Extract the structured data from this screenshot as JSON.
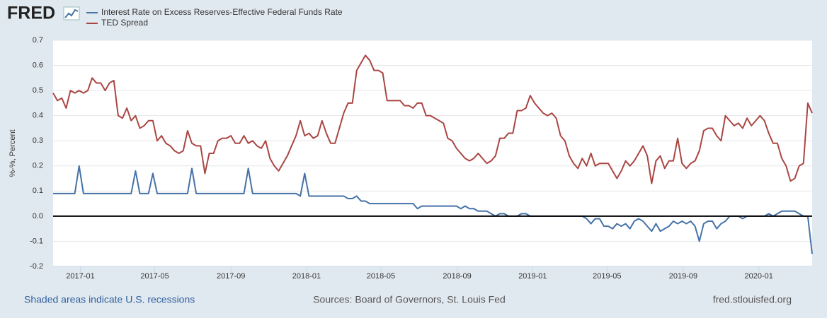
{
  "logo": "FRED",
  "footer": {
    "left": "Shaded areas indicate U.S. recessions",
    "center": "Sources: Board of Governors, St. Louis Fed",
    "right": "fred.stlouisfed.org"
  },
  "chart_data": {
    "type": "line",
    "y_label": "%-%, Percent",
    "x": [
      "2016-11-18",
      "2016-11-25",
      "2016-12-02",
      "2016-12-09",
      "2016-12-16",
      "2016-12-23",
      "2016-12-30",
      "2017-01-06",
      "2017-01-13",
      "2017-01-20",
      "2017-01-27",
      "2017-02-03",
      "2017-02-10",
      "2017-02-17",
      "2017-02-24",
      "2017-03-03",
      "2017-03-10",
      "2017-03-17",
      "2017-03-24",
      "2017-03-31",
      "2017-04-07",
      "2017-04-14",
      "2017-04-21",
      "2017-04-28",
      "2017-05-05",
      "2017-05-12",
      "2017-05-19",
      "2017-05-26",
      "2017-06-02",
      "2017-06-09",
      "2017-06-16",
      "2017-06-23",
      "2017-06-30",
      "2017-07-07",
      "2017-07-14",
      "2017-07-21",
      "2017-07-28",
      "2017-08-04",
      "2017-08-11",
      "2017-08-18",
      "2017-08-25",
      "2017-09-01",
      "2017-09-08",
      "2017-09-15",
      "2017-09-22",
      "2017-09-29",
      "2017-10-06",
      "2017-10-13",
      "2017-10-20",
      "2017-10-27",
      "2017-11-03",
      "2017-11-10",
      "2017-11-17",
      "2017-11-24",
      "2017-12-01",
      "2017-12-08",
      "2017-12-15",
      "2017-12-22",
      "2017-12-29",
      "2018-01-05",
      "2018-01-12",
      "2018-01-19",
      "2018-01-26",
      "2018-02-02",
      "2018-02-09",
      "2018-02-16",
      "2018-02-23",
      "2018-03-02",
      "2018-03-09",
      "2018-03-16",
      "2018-03-23",
      "2018-03-30",
      "2018-04-06",
      "2018-04-13",
      "2018-04-20",
      "2018-04-27",
      "2018-05-04",
      "2018-05-11",
      "2018-05-18",
      "2018-05-25",
      "2018-06-01",
      "2018-06-08",
      "2018-06-15",
      "2018-06-22",
      "2018-06-29",
      "2018-07-06",
      "2018-07-13",
      "2018-07-20",
      "2018-07-27",
      "2018-08-03",
      "2018-08-10",
      "2018-08-17",
      "2018-08-24",
      "2018-08-31",
      "2018-09-07",
      "2018-09-14",
      "2018-09-21",
      "2018-09-28",
      "2018-10-05",
      "2018-10-12",
      "2018-10-19",
      "2018-10-26",
      "2018-11-02",
      "2018-11-09",
      "2018-11-16",
      "2018-11-23",
      "2018-11-30",
      "2018-12-07",
      "2018-12-14",
      "2018-12-21",
      "2018-12-28",
      "2019-01-04",
      "2019-01-11",
      "2019-01-18",
      "2019-01-25",
      "2019-02-01",
      "2019-02-08",
      "2019-02-15",
      "2019-02-22",
      "2019-03-01",
      "2019-03-08",
      "2019-03-15",
      "2019-03-22",
      "2019-03-29",
      "2019-04-05",
      "2019-04-12",
      "2019-04-19",
      "2019-04-26",
      "2019-05-03",
      "2019-05-10",
      "2019-05-17",
      "2019-05-24",
      "2019-05-31",
      "2019-06-07",
      "2019-06-14",
      "2019-06-21",
      "2019-06-28",
      "2019-07-05",
      "2019-07-12",
      "2019-07-19",
      "2019-07-26",
      "2019-08-02",
      "2019-08-09",
      "2019-08-16",
      "2019-08-23",
      "2019-08-30",
      "2019-09-06",
      "2019-09-13",
      "2019-09-20",
      "2019-09-27",
      "2019-10-04",
      "2019-10-11",
      "2019-10-18",
      "2019-10-25",
      "2019-11-01",
      "2019-11-08",
      "2019-11-15",
      "2019-11-22",
      "2019-11-29",
      "2019-12-06",
      "2019-12-13",
      "2019-12-20",
      "2019-12-27",
      "2020-01-03",
      "2020-01-10",
      "2020-01-17",
      "2020-01-24",
      "2020-01-31",
      "2020-02-07",
      "2020-02-14",
      "2020-02-21",
      "2020-02-28",
      "2020-03-06",
      "2020-03-13",
      "2020-03-20",
      "2020-03-27"
    ],
    "series": [
      {
        "name": "Interest Rate on Excess Reserves-Effective Federal Funds Rate",
        "color": "#4572a7",
        "values": [
          0.09,
          0.09,
          0.09,
          0.09,
          0.09,
          0.09,
          0.2,
          0.09,
          0.09,
          0.09,
          0.09,
          0.09,
          0.09,
          0.09,
          0.09,
          0.09,
          0.09,
          0.09,
          0.09,
          0.18,
          0.09,
          0.09,
          0.09,
          0.17,
          0.09,
          0.09,
          0.09,
          0.09,
          0.09,
          0.09,
          0.09,
          0.09,
          0.19,
          0.09,
          0.09,
          0.09,
          0.09,
          0.09,
          0.09,
          0.09,
          0.09,
          0.09,
          0.09,
          0.09,
          0.09,
          0.19,
          0.09,
          0.09,
          0.09,
          0.09,
          0.09,
          0.09,
          0.09,
          0.09,
          0.09,
          0.09,
          0.09,
          0.08,
          0.17,
          0.08,
          0.08,
          0.08,
          0.08,
          0.08,
          0.08,
          0.08,
          0.08,
          0.08,
          0.07,
          0.07,
          0.08,
          0.06,
          0.06,
          0.05,
          0.05,
          0.05,
          0.05,
          0.05,
          0.05,
          0.05,
          0.05,
          0.05,
          0.05,
          0.05,
          0.03,
          0.04,
          0.04,
          0.04,
          0.04,
          0.04,
          0.04,
          0.04,
          0.04,
          0.04,
          0.03,
          0.04,
          0.03,
          0.03,
          0.02,
          0.02,
          0.02,
          0.01,
          0.0,
          0.01,
          0.01,
          0.0,
          0.0,
          0.0,
          0.01,
          0.01,
          0.0,
          0.0,
          0.0,
          0.0,
          0.0,
          0.0,
          0.0,
          0.0,
          0.0,
          0.0,
          0.0,
          0.0,
          0.0,
          -0.01,
          -0.03,
          -0.01,
          -0.01,
          -0.04,
          -0.04,
          -0.05,
          -0.03,
          -0.04,
          -0.03,
          -0.05,
          -0.02,
          -0.01,
          -0.02,
          -0.04,
          -0.06,
          -0.03,
          -0.06,
          -0.05,
          -0.04,
          -0.02,
          -0.03,
          -0.02,
          -0.03,
          -0.02,
          -0.04,
          -0.1,
          -0.03,
          -0.02,
          -0.02,
          -0.05,
          -0.03,
          -0.02,
          0.0,
          0.0,
          0.0,
          -0.01,
          0.0,
          0.0,
          0.0,
          0.0,
          0.0,
          0.01,
          0.0,
          0.01,
          0.02,
          0.02,
          0.02,
          0.02,
          0.01,
          0.0,
          0.0,
          -0.15
        ]
      },
      {
        "name": "TED Spread",
        "color": "#aa4643",
        "values": [
          0.49,
          0.46,
          0.47,
          0.43,
          0.5,
          0.49,
          0.5,
          0.49,
          0.5,
          0.55,
          0.53,
          0.53,
          0.5,
          0.53,
          0.54,
          0.4,
          0.39,
          0.43,
          0.38,
          0.4,
          0.35,
          0.36,
          0.38,
          0.38,
          0.3,
          0.32,
          0.29,
          0.28,
          0.26,
          0.25,
          0.26,
          0.34,
          0.29,
          0.28,
          0.28,
          0.17,
          0.25,
          0.25,
          0.3,
          0.31,
          0.31,
          0.32,
          0.29,
          0.29,
          0.32,
          0.29,
          0.3,
          0.28,
          0.27,
          0.3,
          0.23,
          0.2,
          0.18,
          0.21,
          0.24,
          0.28,
          0.32,
          0.38,
          0.32,
          0.33,
          0.31,
          0.32,
          0.38,
          0.33,
          0.29,
          0.29,
          0.35,
          0.41,
          0.45,
          0.45,
          0.58,
          0.61,
          0.64,
          0.62,
          0.58,
          0.58,
          0.57,
          0.46,
          0.46,
          0.46,
          0.46,
          0.44,
          0.44,
          0.43,
          0.45,
          0.45,
          0.4,
          0.4,
          0.39,
          0.38,
          0.37,
          0.31,
          0.3,
          0.27,
          0.25,
          0.23,
          0.22,
          0.23,
          0.25,
          0.23,
          0.21,
          0.22,
          0.24,
          0.31,
          0.31,
          0.33,
          0.33,
          0.42,
          0.42,
          0.43,
          0.48,
          0.45,
          0.43,
          0.41,
          0.4,
          0.41,
          0.39,
          0.32,
          0.3,
          0.24,
          0.21,
          0.19,
          0.23,
          0.2,
          0.25,
          0.2,
          0.21,
          0.21,
          0.21,
          0.18,
          0.15,
          0.18,
          0.22,
          0.2,
          0.22,
          0.25,
          0.28,
          0.24,
          0.13,
          0.22,
          0.24,
          0.19,
          0.22,
          0.22,
          0.31,
          0.21,
          0.19,
          0.21,
          0.22,
          0.26,
          0.34,
          0.35,
          0.35,
          0.32,
          0.3,
          0.4,
          0.38,
          0.36,
          0.37,
          0.35,
          0.39,
          0.36,
          0.38,
          0.4,
          0.38,
          0.33,
          0.29,
          0.29,
          0.23,
          0.2,
          0.14,
          0.15,
          0.2,
          0.21,
          0.45,
          0.41
        ]
      }
    ],
    "xlim": [
      "2016-11-18",
      "2020-03-27"
    ],
    "xticks": [
      {
        "value": "2017-01-01",
        "label": "2017-01"
      },
      {
        "value": "2017-05-01",
        "label": "2017-05"
      },
      {
        "value": "2017-09-01",
        "label": "2017-09"
      },
      {
        "value": "2018-01-01",
        "label": "2018-01"
      },
      {
        "value": "2018-05-01",
        "label": "2018-05"
      },
      {
        "value": "2018-09-01",
        "label": "2018-09"
      },
      {
        "value": "2019-01-01",
        "label": "2019-01"
      },
      {
        "value": "2019-05-01",
        "label": "2019-05"
      },
      {
        "value": "2019-09-01",
        "label": "2019-09"
      },
      {
        "value": "2020-01-01",
        "label": "2020-01"
      }
    ],
    "ylim": [
      -0.2,
      0.7
    ],
    "yticks": [
      -0.2,
      -0.1,
      {
        "value": 0,
        "label": "0.0"
      },
      0.1,
      0.2,
      0.3,
      0.4,
      0.5,
      0.6,
      0.7
    ],
    "grid": true
  }
}
